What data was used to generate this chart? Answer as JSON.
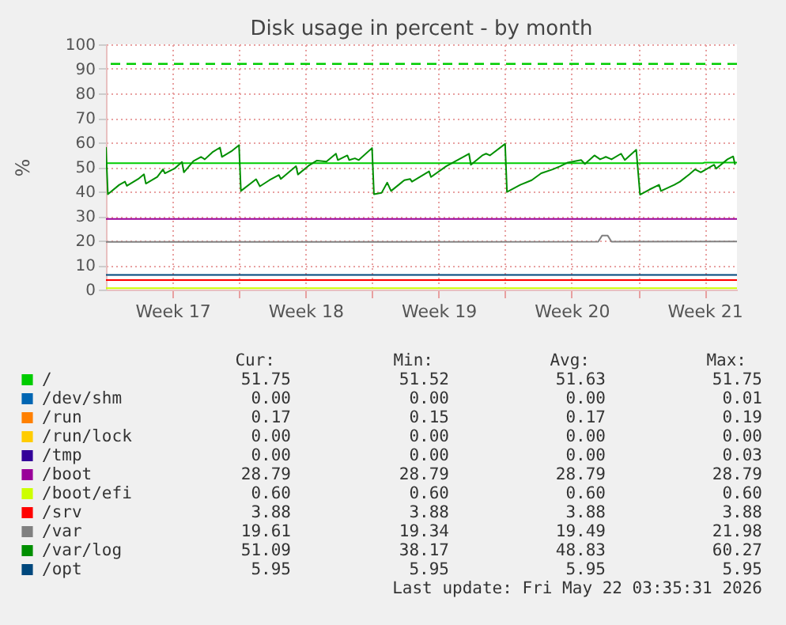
{
  "chart_data": {
    "type": "line",
    "title": "Disk usage in percent - by month",
    "ylabel": "%",
    "xlim": [
      "2026-04-20T00:00",
      "2026-05-23T04:48"
    ],
    "ylim": [
      0,
      100
    ],
    "xticks": [
      {
        "value": "2026-04-23T12:00",
        "label": "Week 17"
      },
      {
        "value": "2026-04-27T00:00",
        "label": null
      },
      {
        "value": "2026-04-30T12:00",
        "label": "Week 18"
      },
      {
        "value": "2026-05-04T00:00",
        "label": null
      },
      {
        "value": "2026-05-07T12:00",
        "label": "Week 19"
      },
      {
        "value": "2026-05-11T00:00",
        "label": null
      },
      {
        "value": "2026-05-14T12:00",
        "label": "Week 20"
      },
      {
        "value": "2026-05-18T00:00",
        "label": null
      },
      {
        "value": "2026-05-21T12:00",
        "label": "Week 21"
      }
    ],
    "yticks": [
      0,
      10,
      20,
      30,
      40,
      50,
      60,
      70,
      80,
      90,
      100
    ],
    "grid": true,
    "legend": "bottom left",
    "marker": "none",
    "line_style": "solid",
    "ref_lines": [
      {
        "axis": "y",
        "value": 92,
        "label": null,
        "color": "#00cc00",
        "line_style": "dashed"
      }
    ],
    "series": [
      {
        "name": "/",
        "color": "#00cc00",
        "x": [
          "2026-04-20T00:00",
          "2026-05-21T09:36",
          "2026-05-21T12:00",
          "2026-05-23T04:48"
        ],
        "values": [
          51.52,
          51.52,
          51.75,
          51.75
        ]
      },
      {
        "name": "/dev/shm",
        "color": "#0066b3",
        "values": [
          null,
          null
        ]
      },
      {
        "name": "/run",
        "color": "#ff8000",
        "values": [
          null,
          null
        ]
      },
      {
        "name": "/run/lock",
        "color": "#ffcc00",
        "values": [
          null,
          null
        ]
      },
      {
        "name": "/tmp",
        "color": "#330099",
        "values": [
          null,
          null
        ]
      },
      {
        "name": "/boot",
        "color": "#990099",
        "x": [
          "2026-04-20T00:00",
          "2026-05-23T04:48"
        ],
        "values": [
          28.79,
          28.79
        ]
      },
      {
        "name": "/boot/efi",
        "color": "#ccff00",
        "x": [
          "2026-04-20T00:00",
          "2026-05-23T04:48"
        ],
        "values": [
          0.6,
          0.6
        ]
      },
      {
        "name": "/srv",
        "color": "#ff0000",
        "x": [
          "2026-04-20T00:00",
          "2026-05-23T04:48"
        ],
        "values": [
          3.88,
          3.88
        ]
      },
      {
        "name": "/var",
        "color": "#808080",
        "x": [
          "2026-04-20T00:00",
          "2026-05-15T21:36",
          "2026-05-16T02:24",
          "2026-05-16T09:36",
          "2026-05-16T14:24",
          "2026-05-23T04:48"
        ],
        "values": [
          19.4,
          19.5,
          21.98,
          21.98,
          19.5,
          19.61
        ]
      },
      {
        "name": "/var/log",
        "color": "#008f00",
        "x": [
          "2026-04-20T00:00",
          "2026-04-20T02:24",
          "2026-04-20T16:48",
          "2026-04-21T00:00",
          "2026-04-21T02:24",
          "2026-04-21T16:48",
          "2026-04-22T00:00",
          "2026-04-22T02:24",
          "2026-04-22T16:48",
          "2026-04-23T00:00",
          "2026-04-23T02:24",
          "2026-04-23T14:24",
          "2026-04-24T00:00",
          "2026-04-24T02:24",
          "2026-04-24T14:24",
          "2026-04-25T00:00",
          "2026-04-25T04:48",
          "2026-04-25T14:24",
          "2026-04-26T00:00",
          "2026-04-26T02:24",
          "2026-04-26T14:24",
          "2026-04-27T00:00",
          "2026-04-27T02:24",
          "2026-04-27T21:36",
          "2026-04-28T02:24",
          "2026-04-28T14:24",
          "2026-04-29T02:24",
          "2026-04-29T04:48",
          "2026-04-30T00:00",
          "2026-04-30T02:24",
          "2026-04-30T16:48",
          "2026-05-01T02:24",
          "2026-05-01T14:24",
          "2026-05-02T02:24",
          "2026-05-02T04:48",
          "2026-05-02T16:48",
          "2026-05-02T19:12",
          "2026-05-03T02:24",
          "2026-05-03T07:12",
          "2026-05-04T00:00",
          "2026-05-04T02:24",
          "2026-05-04T12:00",
          "2026-05-04T19:12",
          "2026-05-05T00:00",
          "2026-05-05T16:48",
          "2026-05-06T00:00",
          "2026-05-06T02:24",
          "2026-05-07T00:00",
          "2026-05-07T02:24",
          "2026-05-07T21:36",
          "2026-05-08T19:12",
          "2026-05-09T02:24",
          "2026-05-09T04:48",
          "2026-05-09T19:12",
          "2026-05-10T00:00",
          "2026-05-10T04:48",
          "2026-05-11T00:00",
          "2026-05-11T02:24",
          "2026-05-11T19:12",
          "2026-05-12T09:36",
          "2026-05-12T21:36",
          "2026-05-13T12:00",
          "2026-05-13T21:36",
          "2026-05-14T07:12",
          "2026-05-15T00:00",
          "2026-05-15T04:48",
          "2026-05-15T16:48",
          "2026-05-16T00:00",
          "2026-05-16T07:12",
          "2026-05-16T14:24",
          "2026-05-17T02:24",
          "2026-05-17T07:12",
          "2026-05-17T21:36",
          "2026-05-18T02:24",
          "2026-05-18T14:24",
          "2026-05-19T02:24",
          "2026-05-19T04:48",
          "2026-05-19T21:36",
          "2026-05-20T04:48",
          "2026-05-20T16:48",
          "2026-05-21T00:00",
          "2026-05-21T07:12",
          "2026-05-22T00:00",
          "2026-05-22T02:24",
          "2026-05-22T16:48",
          "2026-05-23T00:00",
          "2026-05-23T02:24"
        ],
        "values": [
          58.1,
          38.9,
          42.7,
          44,
          42.3,
          45.1,
          47,
          43.2,
          45.9,
          49,
          47.4,
          49.3,
          52,
          47.8,
          52.4,
          54.1,
          53.1,
          56,
          57.9,
          54.1,
          56.4,
          58.9,
          40.2,
          45,
          42.1,
          44.6,
          46.7,
          45.1,
          50.3,
          46.9,
          50.7,
          52.6,
          52.2,
          55.4,
          52.8,
          54.7,
          52.8,
          53.5,
          52.8,
          57.7,
          38.9,
          39.4,
          43.6,
          40.2,
          44.6,
          45.1,
          44,
          48.2,
          45.9,
          50.3,
          54.1,
          55.4,
          50.9,
          54.7,
          55.4,
          54.7,
          59.4,
          39.8,
          42.7,
          44.6,
          47.4,
          49,
          50.3,
          51.8,
          52.8,
          51.2,
          54.7,
          53.1,
          54.1,
          53.1,
          55.4,
          52.8,
          57,
          38.7,
          40.8,
          42.7,
          40.2,
          42.7,
          44,
          47,
          49,
          47.8,
          50.9,
          49.3,
          53.1,
          54.3,
          50.9
        ]
      },
      {
        "name": "/opt",
        "color": "#00487d",
        "x": [
          "2026-04-20T00:00",
          "2026-05-23T04:48"
        ],
        "values": [
          5.95,
          5.95
        ]
      }
    ],
    "annotations": [
      "Cur:",
      "Min:",
      "Avg:",
      "Max:",
      "51.75",
      "51.52",
      "51.63",
      "51.75",
      "0.00",
      "0.00",
      "0.00",
      "0.01",
      "0.17",
      "0.15",
      "0.17",
      "0.19",
      "0.00",
      "0.00",
      "0.00",
      "0.00",
      "0.00",
      "0.00",
      "0.00",
      "0.03",
      "28.79",
      "28.79",
      "28.79",
      "28.79",
      "0.60",
      "0.60",
      "0.60",
      "0.60",
      "3.88",
      "3.88",
      "3.88",
      "3.88",
      "19.61",
      "19.34",
      "19.49",
      "21.98",
      "51.09",
      "38.17",
      "48.83",
      "60.27",
      "5.95",
      "5.95",
      "5.95",
      "5.95",
      "Last update: Fri May 22 03:35:31 2026"
    ]
  }
}
